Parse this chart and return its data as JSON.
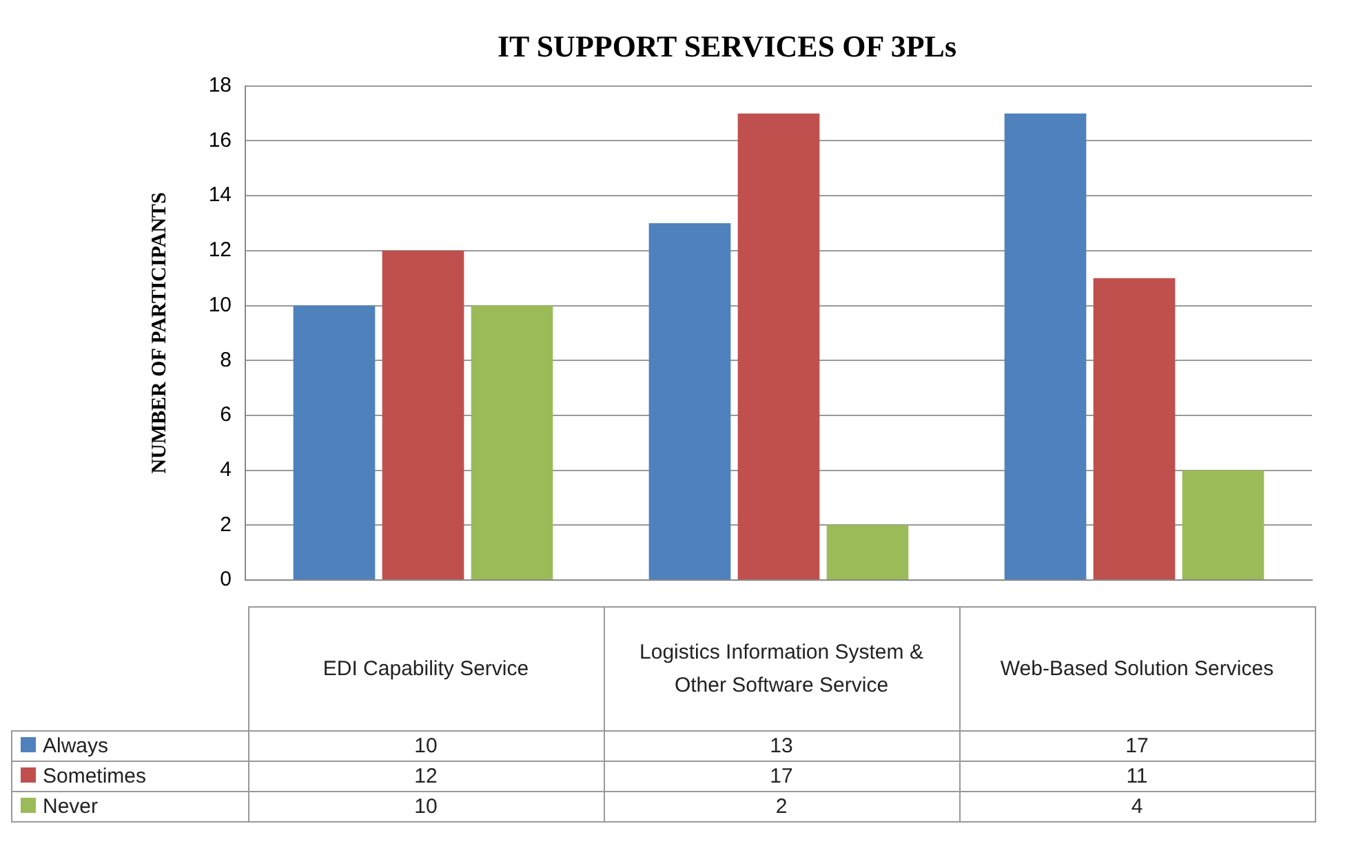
{
  "chart_data": {
    "type": "bar",
    "title": "IT SUPPORT SERVICES OF 3PLs",
    "ylabel": "NUMBER OF PARTICIPANTS",
    "categories": [
      "EDI Capability Service",
      "Logistics Information System & Other Software Service",
      "Web-Based Solution Services"
    ],
    "series": [
      {
        "name": "Always",
        "color": "#4f81bd",
        "values": [
          10,
          13,
          17
        ]
      },
      {
        "name": "Sometimes",
        "color": "#c0504d",
        "values": [
          12,
          17,
          11
        ]
      },
      {
        "name": "Never",
        "color": "#9bbb59",
        "values": [
          10,
          2,
          4
        ]
      }
    ],
    "ylim": [
      0,
      18
    ],
    "yticks": [
      0,
      2,
      4,
      6,
      8,
      10,
      12,
      14,
      16,
      18
    ],
    "grid": "y",
    "legend": "bottom",
    "data_labels": true
  }
}
